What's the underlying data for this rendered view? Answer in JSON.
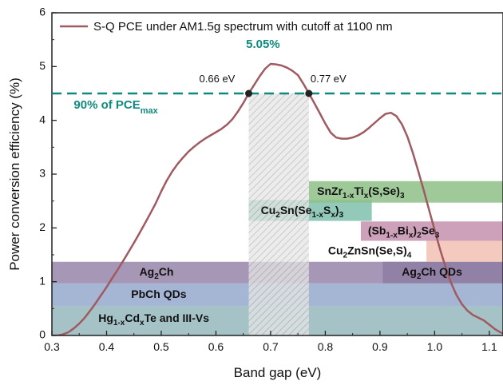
{
  "chart_data": {
    "type": "line",
    "xlabel": "Band gap (eV)",
    "ylabel": "Power conversion efficiency (%)",
    "xlim": [
      0.3,
      1.125
    ],
    "ylim": [
      0,
      6
    ],
    "x_ticks": [
      "0.3",
      "0.4",
      "0.5",
      "0.6",
      "0.7",
      "0.8",
      "0.9",
      "1.0",
      "1.1"
    ],
    "y_ticks": [
      "0",
      "1",
      "2",
      "3",
      "4",
      "5",
      "6"
    ],
    "grid": false,
    "legend_position": "top-left",
    "series": [
      {
        "name": "S-Q PCE under AM1.5g spectrum with cutoff at 1100 nm",
        "color": "#a05a62",
        "x": [
          0.3,
          0.31,
          0.32,
          0.33,
          0.34,
          0.35,
          0.36,
          0.37,
          0.38,
          0.39,
          0.4,
          0.41,
          0.42,
          0.43,
          0.44,
          0.45,
          0.46,
          0.47,
          0.48,
          0.49,
          0.5,
          0.51,
          0.52,
          0.53,
          0.54,
          0.55,
          0.56,
          0.57,
          0.58,
          0.59,
          0.6,
          0.61,
          0.62,
          0.63,
          0.64,
          0.65,
          0.66,
          0.67,
          0.68,
          0.69,
          0.7,
          0.71,
          0.72,
          0.73,
          0.74,
          0.75,
          0.76,
          0.77,
          0.78,
          0.79,
          0.8,
          0.81,
          0.82,
          0.83,
          0.84,
          0.85,
          0.86,
          0.87,
          0.88,
          0.89,
          0.9,
          0.91,
          0.92,
          0.93,
          0.94,
          0.95,
          0.96,
          0.97,
          0.98,
          0.99,
          1.0,
          1.01,
          1.02,
          1.03,
          1.04,
          1.05,
          1.06,
          1.07,
          1.08,
          1.09,
          1.1,
          1.11,
          1.12,
          1.125
        ],
        "y": [
          0.0,
          0.0,
          0.02,
          0.06,
          0.13,
          0.22,
          0.33,
          0.46,
          0.6,
          0.75,
          0.9,
          1.06,
          1.22,
          1.38,
          1.55,
          1.72,
          1.9,
          2.08,
          2.27,
          2.46,
          2.68,
          2.88,
          3.05,
          3.19,
          3.31,
          3.42,
          3.51,
          3.59,
          3.66,
          3.72,
          3.78,
          3.84,
          3.92,
          4.02,
          4.16,
          4.32,
          4.5,
          4.66,
          4.82,
          4.96,
          5.05,
          5.04,
          5.02,
          4.98,
          4.92,
          4.84,
          4.68,
          4.5,
          4.32,
          4.13,
          3.94,
          3.77,
          3.68,
          3.66,
          3.66,
          3.68,
          3.72,
          3.78,
          3.86,
          3.95,
          4.04,
          4.12,
          4.14,
          4.08,
          3.93,
          3.7,
          3.4,
          3.06,
          2.7,
          2.33,
          1.96,
          1.6,
          1.27,
          0.98,
          0.75,
          0.58,
          0.46,
          0.38,
          0.33,
          0.28,
          0.2,
          0.12,
          0.06,
          0.04
        ]
      }
    ],
    "peak_label": "5.05%",
    "ninety_percent": {
      "value": 4.5,
      "label": "90% of PCE",
      "label_subscript": "max",
      "color": "#0f8a7e"
    },
    "markers": [
      {
        "x": 0.66,
        "y": 4.5,
        "label": "0.66 eV"
      },
      {
        "x": 0.77,
        "y": 4.5,
        "label": "0.77 eV"
      }
    ],
    "optimal_region": {
      "x0": 0.66,
      "x1": 0.77
    },
    "material_bands": [
      {
        "id": "snzrti",
        "x0": 0.77,
        "x1": 1.125,
        "y0": 2.47,
        "y1": 2.87,
        "color": "#8fbf88",
        "label": [
          {
            "t": "SnZr"
          },
          {
            "t": "1-x",
            "sub": true
          },
          {
            "t": "Ti"
          },
          {
            "t": "x",
            "sub": true
          },
          {
            "t": "(S,Se)"
          },
          {
            "t": "3",
            "sub": true
          }
        ],
        "label_x": 0.785,
        "label_y": 2.67
      },
      {
        "id": "cu2sn",
        "x0": 0.66,
        "x1": 0.885,
        "y0": 2.13,
        "y1": 2.52,
        "color": "#7fbfad",
        "label": [
          {
            "t": "Cu"
          },
          {
            "t": "2",
            "sub": true
          },
          {
            "t": "Sn(Se"
          },
          {
            "t": "1-x",
            "sub": true
          },
          {
            "t": "S"
          },
          {
            "t": "x",
            "sub": true
          },
          {
            "t": ")"
          },
          {
            "t": "3",
            "sub": true
          }
        ],
        "label_x": 0.682,
        "label_y": 2.32
      },
      {
        "id": "sbbi",
        "x0": 0.865,
        "x1": 1.125,
        "y0": 1.76,
        "y1": 2.12,
        "color": "#c490ad",
        "label": [
          {
            "t": "(Sb"
          },
          {
            "t": "1-x",
            "sub": true
          },
          {
            "t": "Bi"
          },
          {
            "t": "x",
            "sub": true
          },
          {
            "t": ")"
          },
          {
            "t": "2",
            "sub": true
          },
          {
            "t": "Se"
          },
          {
            "t": "3",
            "sub": true
          }
        ],
        "label_x": 0.878,
        "label_y": 1.94
      },
      {
        "id": "czts",
        "x0": 0.985,
        "x1": 1.125,
        "y0": 1.37,
        "y1": 1.76,
        "color": "#f2c0b3",
        "label": [
          {
            "t": "Cu"
          },
          {
            "t": "2",
            "sub": true
          },
          {
            "t": "ZnSn(Se,S)"
          },
          {
            "t": "4",
            "sub": true
          }
        ],
        "label_x": 0.805,
        "label_y": 1.57
      },
      {
        "id": "ag2ch_right",
        "x0": 0.905,
        "x1": 1.125,
        "y0": 0.97,
        "y1": 1.37,
        "color": "#8e7da3",
        "label": [
          {
            "t": "Ag"
          },
          {
            "t": "2",
            "sub": true
          },
          {
            "t": "Ch QDs"
          }
        ],
        "label_x": 0.94,
        "label_y": 1.17
      },
      {
        "id": "ag2ch",
        "x0": 0.3,
        "x1": 1.125,
        "y0": 0.97,
        "y1": 1.37,
        "color": "#8e7da3",
        "opacity": 0.8,
        "label": [
          {
            "t": "Ag"
          },
          {
            "t": "2",
            "sub": true
          },
          {
            "t": "Ch"
          }
        ],
        "label_x": 0.46,
        "label_y": 1.17
      },
      {
        "id": "pbch",
        "x0": 0.3,
        "x1": 1.125,
        "y0": 0.55,
        "y1": 0.97,
        "color": "#8ea3c9",
        "opacity": 0.8,
        "label": [
          {
            "t": "PbCh QDs"
          }
        ],
        "label_x": 0.445,
        "label_y": 0.76
      },
      {
        "id": "hgcdte",
        "x0": 0.3,
        "x1": 1.125,
        "y0": 0.0,
        "y1": 0.55,
        "color": "#8fb4b8",
        "opacity": 0.8,
        "label": [
          {
            "t": "Hg"
          },
          {
            "t": "1-x",
            "sub": true
          },
          {
            "t": "Cd"
          },
          {
            "t": "x",
            "sub": true
          },
          {
            "t": "Te and III-Vs"
          }
        ],
        "label_x": 0.385,
        "label_y": 0.31
      }
    ]
  }
}
